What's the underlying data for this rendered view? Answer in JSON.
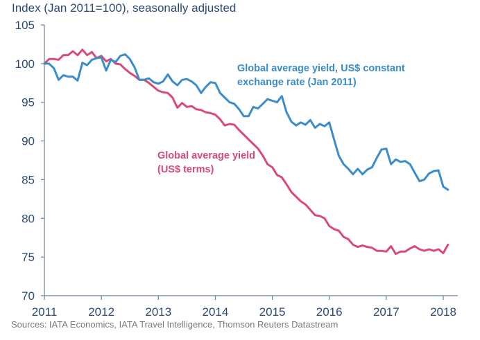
{
  "chart_data": {
    "type": "line",
    "title": "",
    "ylabel": "Index (Jan 2011=100), seasonally adjusted",
    "xlabel": "",
    "ylim": [
      70,
      105
    ],
    "xlim": [
      2011,
      2018.17
    ],
    "yticks": [
      70,
      75,
      80,
      85,
      90,
      95,
      100,
      105
    ],
    "xticks": [
      2011,
      2012,
      2013,
      2014,
      2015,
      2016,
      2017,
      2018
    ],
    "grid": false,
    "legend": "inline-annotations",
    "x_start": 2011.0,
    "x_step_months": 1,
    "series": [
      {
        "name": "Global average yield, US$ constant exchange rate (Jan 2011)",
        "label_lines": [
          "Global average yield, US$ constant",
          "exchange rate (Jan 2011)"
        ],
        "color": "#3a8ccb",
        "values": [
          100.0,
          100.0,
          99.4,
          97.9,
          98.5,
          98.3,
          98.3,
          97.8,
          100.1,
          99.8,
          100.5,
          100.7,
          100.8,
          99.1,
          100.5,
          100.2,
          101.0,
          101.2,
          100.6,
          99.5,
          97.9,
          97.9,
          98.1,
          97.6,
          97.4,
          97.7,
          98.6,
          97.7,
          97.2,
          97.9,
          98.0,
          97.7,
          97.2,
          96.2,
          97.0,
          97.6,
          97.5,
          96.2,
          95.6,
          95.0,
          94.8,
          94.1,
          93.2,
          93.2,
          94.4,
          94.2,
          94.8,
          95.4,
          95.2,
          95.0,
          95.8,
          93.7,
          92.5,
          92.0,
          92.4,
          92.1,
          92.7,
          91.7,
          92.2,
          91.9,
          92.4,
          90.2,
          88.1,
          87.0,
          86.4,
          85.7,
          86.4,
          85.7,
          86.3,
          86.6,
          87.8,
          88.9,
          89.0,
          87.0,
          87.6,
          87.3,
          87.4,
          87.0,
          85.9,
          84.8,
          85.0,
          85.8,
          86.1,
          86.2,
          84.1,
          83.7
        ],
        "label_text_color": "#3a8ccb"
      },
      {
        "name": "Global average yield (US$ terms)",
        "label_lines": [
          "Global average yield",
          "(US$ terms)"
        ],
        "color": "#d94a74",
        "values": [
          100.0,
          100.6,
          100.6,
          100.5,
          101.1,
          101.1,
          101.6,
          101.1,
          101.8,
          101.1,
          101.5,
          100.7,
          101.0,
          100.3,
          100.6,
          100.0,
          99.9,
          99.3,
          98.8,
          98.4,
          97.9,
          97.9,
          97.5,
          97.0,
          96.5,
          96.3,
          96.2,
          95.6,
          94.3,
          94.9,
          94.4,
          94.5,
          94.1,
          94.0,
          93.7,
          93.6,
          93.4,
          92.8,
          92.0,
          92.2,
          92.1,
          91.4,
          90.8,
          90.2,
          89.6,
          89.0,
          88.1,
          87.0,
          86.6,
          85.6,
          85.3,
          84.4,
          83.4,
          82.8,
          82.2,
          81.8,
          81.1,
          80.4,
          80.3,
          80.0,
          79.0,
          78.6,
          78.4,
          77.6,
          77.3,
          76.6,
          76.3,
          76.5,
          76.3,
          76.2,
          75.8,
          75.8,
          75.7,
          76.4,
          75.4,
          75.7,
          75.7,
          76.1,
          76.4,
          76.0,
          75.8,
          76.0,
          75.8,
          76.0,
          75.5,
          76.6
        ],
        "label_text_color": "#d94a74"
      }
    ],
    "source_note": "Sources: IATA Economics, IATA Travel Intelligence, Thomson Reuters Datastream"
  },
  "colors": {
    "axis": "#6a7f9f",
    "tick_text": "#2a4a7b",
    "source_text": "#7a7a7a"
  }
}
